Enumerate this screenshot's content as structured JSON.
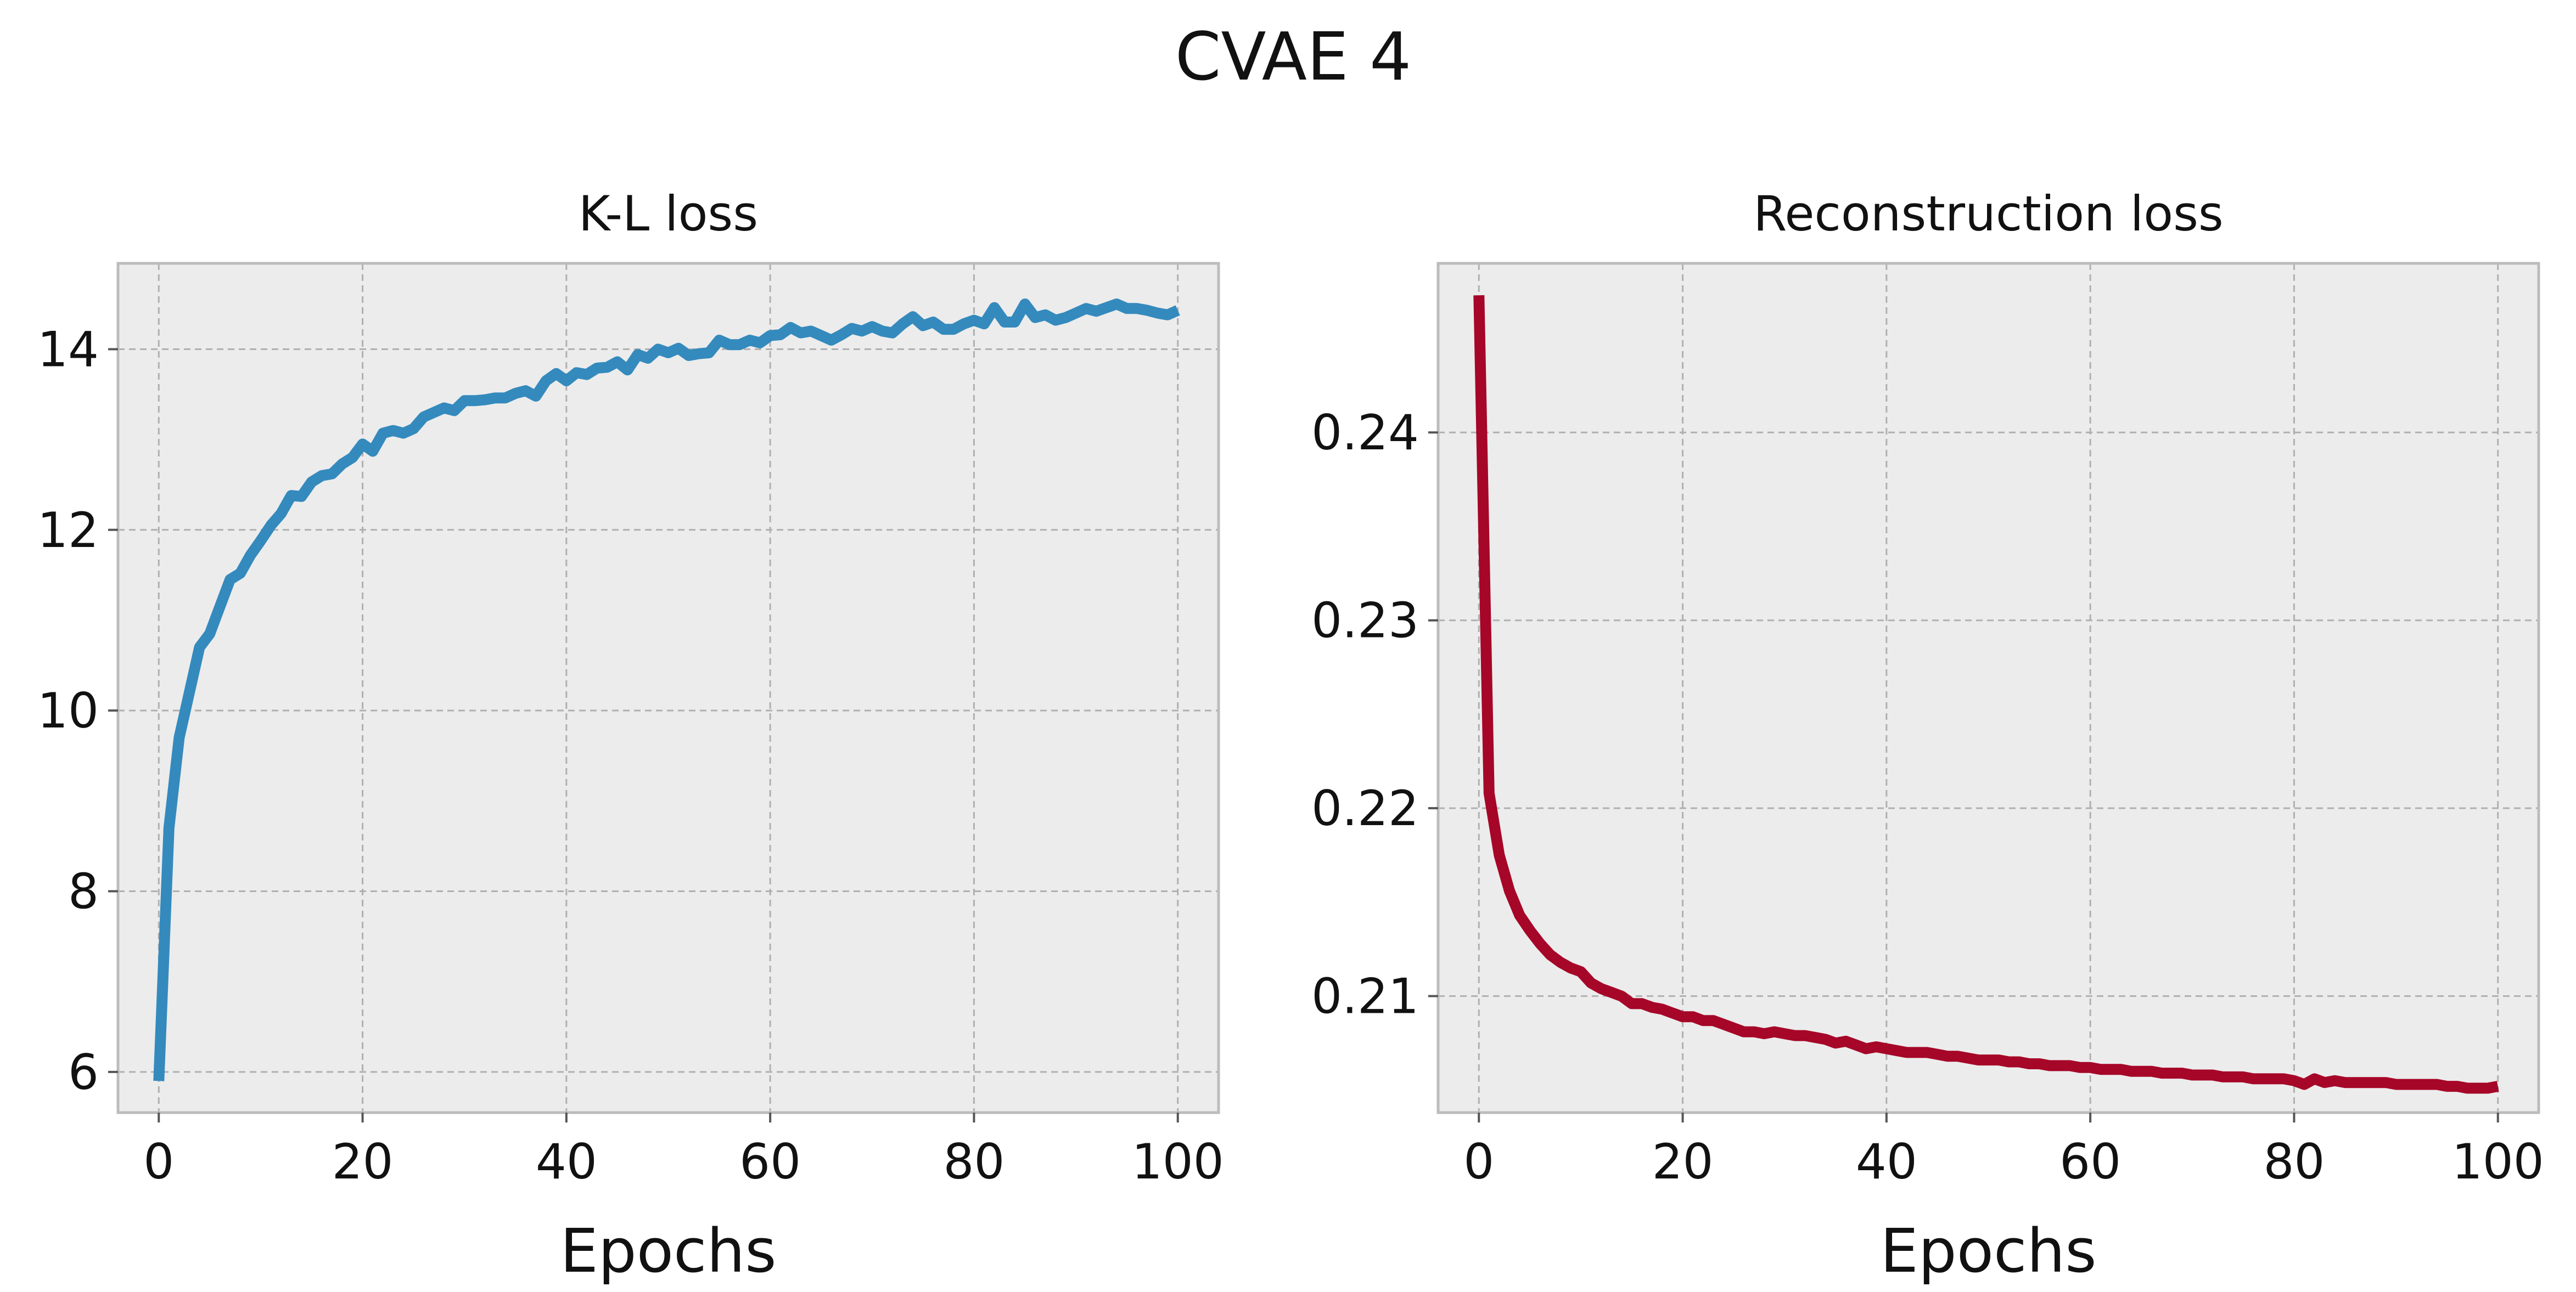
{
  "figure": {
    "title": "CVAE 4"
  },
  "style": {
    "axes_face": "#ececec",
    "spine_color": "#bcbcbc",
    "grid_color": "#b0b0b0",
    "text_color": "#111111"
  },
  "chart_data": [
    {
      "type": "line",
      "title": "K-L loss",
      "xlabel": "Epochs",
      "ylabel": "",
      "xlim": [
        -4,
        104
      ],
      "ylim": [
        5.55,
        14.95
      ],
      "xticks": [
        0,
        20,
        40,
        60,
        80,
        100
      ],
      "yticks": [
        6,
        8,
        10,
        12,
        14
      ],
      "ytick_labels": [
        "6",
        "8",
        "10",
        "12",
        "14"
      ],
      "grid": true,
      "series": [
        {
          "name": "K-L loss",
          "color": "#348abd",
          "x": [
            0,
            1,
            2,
            3,
            4,
            5,
            6,
            7,
            8,
            9,
            10,
            11,
            12,
            13,
            14,
            15,
            16,
            17,
            18,
            19,
            20,
            21,
            22,
            23,
            24,
            25,
            26,
            27,
            28,
            29,
            30,
            31,
            32,
            33,
            34,
            35,
            36,
            37,
            38,
            39,
            40,
            41,
            42,
            43,
            44,
            45,
            46,
            47,
            48,
            49,
            50,
            51,
            52,
            53,
            54,
            55,
            56,
            57,
            58,
            59,
            60,
            61,
            62,
            63,
            64,
            65,
            66,
            67,
            68,
            69,
            70,
            71,
            72,
            73,
            74,
            75,
            76,
            77,
            78,
            79,
            80,
            81,
            82,
            83,
            84,
            85,
            86,
            87,
            88,
            89,
            90,
            91,
            92,
            93,
            94,
            95,
            96,
            97,
            98,
            99,
            100
          ],
          "values": [
            5.9,
            8.7,
            9.7,
            10.2,
            10.7,
            10.85,
            11.15,
            11.45,
            11.52,
            11.72,
            11.88,
            12.05,
            12.18,
            12.38,
            12.37,
            12.53,
            12.6,
            12.62,
            12.73,
            12.8,
            12.95,
            12.87,
            13.07,
            13.1,
            13.07,
            13.12,
            13.25,
            13.3,
            13.35,
            13.32,
            13.43,
            13.43,
            13.44,
            13.46,
            13.46,
            13.51,
            13.54,
            13.48,
            13.65,
            13.73,
            13.65,
            13.74,
            13.72,
            13.79,
            13.8,
            13.86,
            13.77,
            13.94,
            13.9,
            14.0,
            13.96,
            14.01,
            13.93,
            13.95,
            13.96,
            14.1,
            14.05,
            14.05,
            14.1,
            14.07,
            14.15,
            14.16,
            14.24,
            14.18,
            14.2,
            14.15,
            14.1,
            14.16,
            14.23,
            14.2,
            14.25,
            14.2,
            14.18,
            14.28,
            14.36,
            14.26,
            14.3,
            14.22,
            14.22,
            14.28,
            14.32,
            14.28,
            14.46,
            14.3,
            14.3,
            14.5,
            14.35,
            14.38,
            14.32,
            14.35,
            14.4,
            14.45,
            14.42,
            14.46,
            14.5,
            14.45,
            14.45,
            14.43,
            14.4,
            14.38,
            14.43
          ]
        }
      ]
    },
    {
      "type": "line",
      "title": "Reconstruction loss",
      "xlabel": "Epochs",
      "ylabel": "",
      "xlim": [
        -4,
        104
      ],
      "ylim": [
        0.2038,
        0.249
      ],
      "xticks": [
        0,
        20,
        40,
        60,
        80,
        100
      ],
      "yticks": [
        0.21,
        0.22,
        0.23,
        0.24
      ],
      "ytick_labels": [
        "0.21",
        "0.22",
        "0.23",
        "0.24"
      ],
      "grid": true,
      "series": [
        {
          "name": "Reconstruction loss",
          "color": "#a60628",
          "x": [
            0,
            1,
            2,
            3,
            4,
            5,
            6,
            7,
            8,
            9,
            10,
            11,
            12,
            13,
            14,
            15,
            16,
            17,
            18,
            19,
            20,
            21,
            22,
            23,
            24,
            25,
            26,
            27,
            28,
            29,
            30,
            31,
            32,
            33,
            34,
            35,
            36,
            37,
            38,
            39,
            40,
            41,
            42,
            43,
            44,
            45,
            46,
            47,
            48,
            49,
            50,
            51,
            52,
            53,
            54,
            55,
            56,
            57,
            58,
            59,
            60,
            61,
            62,
            63,
            64,
            65,
            66,
            67,
            68,
            69,
            70,
            71,
            72,
            73,
            74,
            75,
            76,
            77,
            78,
            79,
            80,
            81,
            82,
            83,
            84,
            85,
            86,
            87,
            88,
            89,
            90,
            91,
            92,
            93,
            94,
            95,
            96,
            97,
            98,
            99,
            100
          ],
          "values": [
            0.2473,
            0.2208,
            0.2175,
            0.2156,
            0.2143,
            0.2135,
            0.2128,
            0.2122,
            0.2118,
            0.2115,
            0.2113,
            0.2107,
            0.2104,
            0.2102,
            0.21,
            0.2096,
            0.2096,
            0.2094,
            0.2093,
            0.2091,
            0.2089,
            0.2089,
            0.2087,
            0.2087,
            0.2085,
            0.2083,
            0.2081,
            0.2081,
            0.208,
            0.2081,
            0.208,
            0.2079,
            0.2079,
            0.2078,
            0.2077,
            0.2075,
            0.2076,
            0.2074,
            0.2072,
            0.2073,
            0.2072,
            0.2071,
            0.207,
            0.207,
            0.207,
            0.2069,
            0.2068,
            0.2068,
            0.2067,
            0.2066,
            0.2066,
            0.2066,
            0.2065,
            0.2065,
            0.2064,
            0.2064,
            0.2063,
            0.2063,
            0.2063,
            0.2062,
            0.2062,
            0.2061,
            0.2061,
            0.2061,
            0.206,
            0.206,
            0.206,
            0.2059,
            0.2059,
            0.2059,
            0.2058,
            0.2058,
            0.2058,
            0.2057,
            0.2057,
            0.2057,
            0.2056,
            0.2056,
            0.2056,
            0.2056,
            0.2055,
            0.2053,
            0.2056,
            0.2054,
            0.2055,
            0.2054,
            0.2054,
            0.2054,
            0.2054,
            0.2054,
            0.2053,
            0.2053,
            0.2053,
            0.2053,
            0.2053,
            0.2052,
            0.2052,
            0.2051,
            0.2051,
            0.2051,
            0.2052
          ]
        }
      ]
    }
  ]
}
